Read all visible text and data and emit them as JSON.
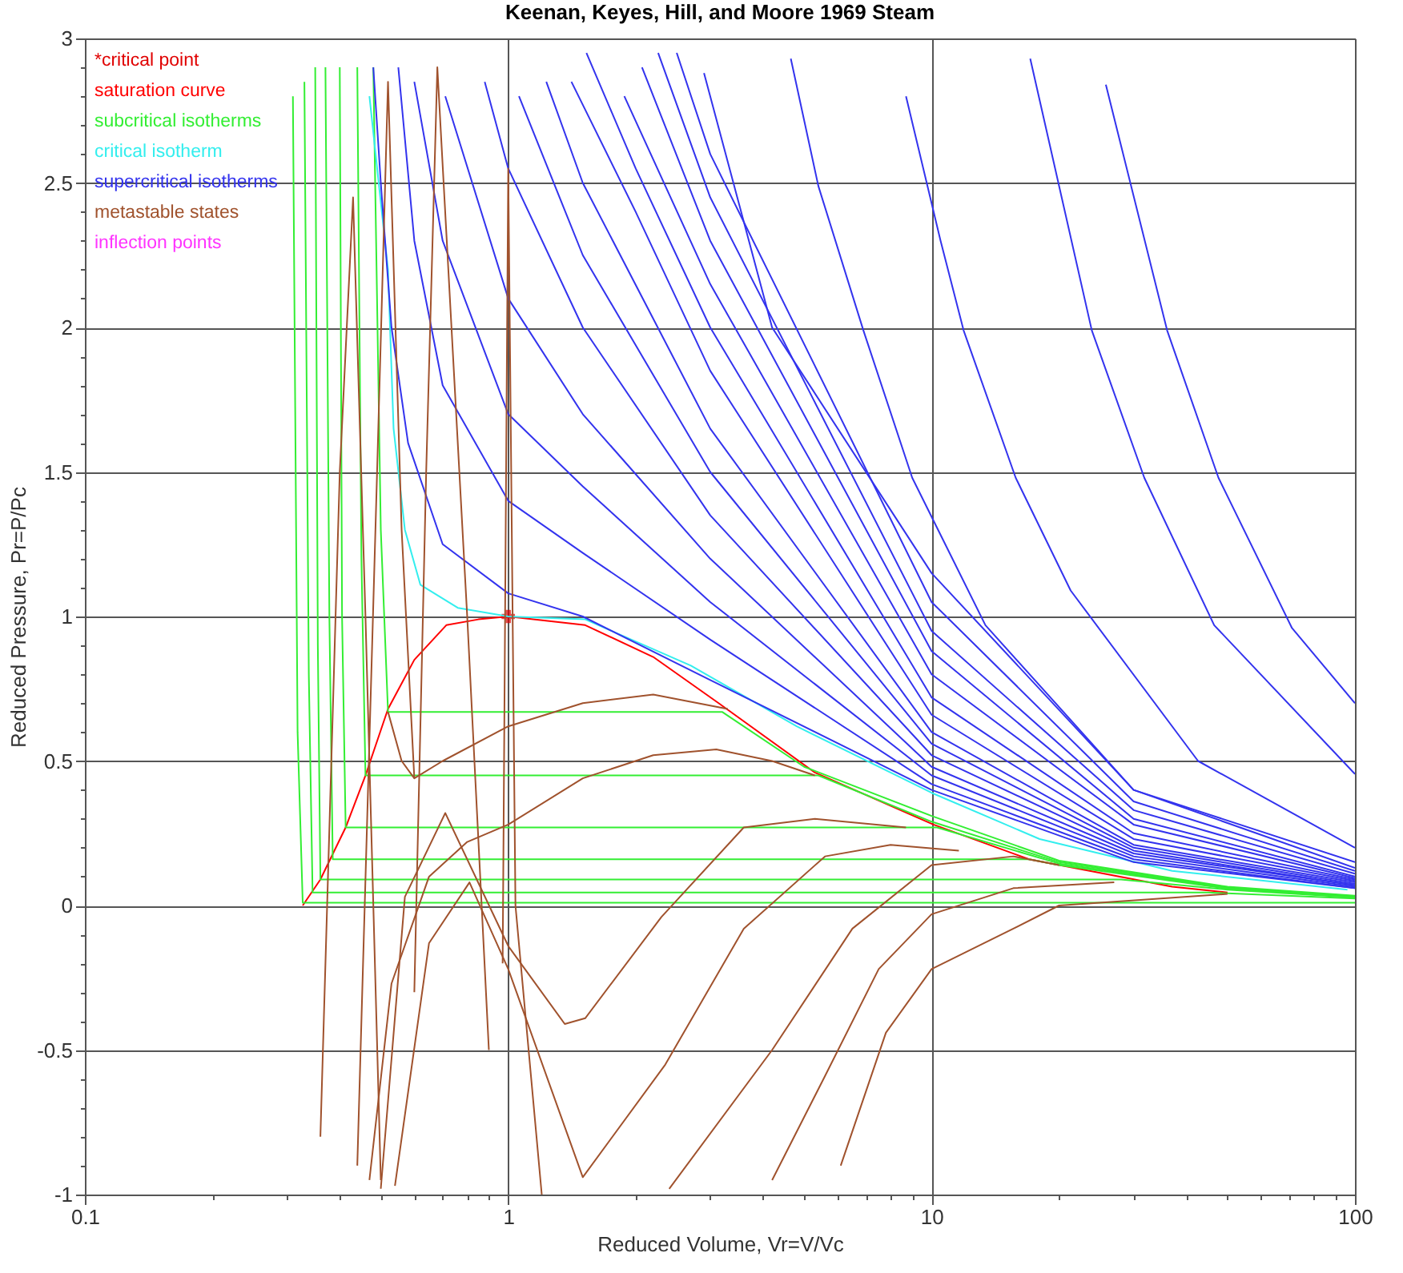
{
  "chart_data": {
    "type": "line",
    "title": "Keenan, Keyes, Hill, and Moore 1969 Steam",
    "xlabel": "Reduced Volume, Vr=V/Vc",
    "ylabel": "Reduced Pressure, Pr=P/Pc",
    "log": "x",
    "grid": true,
    "legend": "top left",
    "xlim": [
      0.1,
      100
    ],
    "ylim": [
      -1,
      3
    ],
    "xticks": [
      0.1,
      {
        "value": 0.2,
        "label": null
      },
      {
        "value": 0.3,
        "label": null
      },
      {
        "value": 0.4,
        "label": null
      },
      {
        "value": 0.5,
        "label": null
      },
      {
        "value": 0.6,
        "label": null
      },
      {
        "value": 0.7,
        "label": null
      },
      {
        "value": 0.8,
        "label": null
      },
      {
        "value": 0.9,
        "label": null
      },
      1,
      {
        "value": 2,
        "label": null
      },
      {
        "value": 3,
        "label": null
      },
      {
        "value": 4,
        "label": null
      },
      {
        "value": 5,
        "label": null
      },
      {
        "value": 6,
        "label": null
      },
      {
        "value": 7,
        "label": null
      },
      {
        "value": 8,
        "label": null
      },
      {
        "value": 9,
        "label": null
      },
      10,
      {
        "value": 20,
        "label": null
      },
      {
        "value": 30,
        "label": null
      },
      {
        "value": 40,
        "label": null
      },
      {
        "value": 50,
        "label": null
      },
      {
        "value": 60,
        "label": null
      },
      {
        "value": 70,
        "label": null
      },
      {
        "value": 80,
        "label": null
      },
      {
        "value": 90,
        "label": null
      },
      100
    ],
    "yticks": [
      -1,
      {
        "value": -0.9,
        "label": null
      },
      {
        "value": -0.8,
        "label": null
      },
      {
        "value": -0.7,
        "label": null
      },
      {
        "value": -0.6,
        "label": null
      },
      -0.5,
      {
        "value": -0.4,
        "label": null
      },
      {
        "value": -0.3,
        "label": null
      },
      {
        "value": -0.2,
        "label": null
      },
      {
        "value": -0.1,
        "label": null
      },
      0,
      {
        "value": 0.1,
        "label": null
      },
      {
        "value": 0.2,
        "label": null
      },
      {
        "value": 0.3,
        "label": null
      },
      {
        "value": 0.4,
        "label": null
      },
      0.5,
      {
        "value": 0.6,
        "label": null
      },
      {
        "value": 0.7,
        "label": null
      },
      {
        "value": 0.8,
        "label": null
      },
      {
        "value": 0.9,
        "label": null
      },
      1,
      {
        "value": 1.1,
        "label": null
      },
      {
        "value": 1.2,
        "label": null
      },
      {
        "value": 1.3,
        "label": null
      },
      {
        "value": 1.4,
        "label": null
      },
      1.5,
      {
        "value": 1.6,
        "label": null
      },
      {
        "value": 1.7,
        "label": null
      },
      {
        "value": 1.8,
        "label": null
      },
      {
        "value": 1.9,
        "label": null
      },
      2,
      {
        "value": 2.1,
        "label": null
      },
      {
        "value": 2.2,
        "label": null
      },
      {
        "value": 2.3,
        "label": null
      },
      {
        "value": 2.4,
        "label": null
      },
      2.5,
      {
        "value": 2.6,
        "label": null
      },
      {
        "value": 2.7,
        "label": null
      },
      {
        "value": 2.8,
        "label": null
      },
      {
        "value": 2.9,
        "label": null
      },
      3
    ],
    "series": [
      {
        "name": "*critical point",
        "type": "scatter",
        "marker": "cross",
        "color": "#e00000",
        "x": [
          1.0
        ],
        "values": [
          1.0
        ]
      },
      {
        "name": "saturation curve",
        "color": "#ff0000",
        "x": [
          0.327,
          0.36,
          0.413,
          0.46,
          0.52,
          0.6,
          0.714,
          0.85,
          1.0,
          1.52,
          2.2,
          3.14,
          5.3,
          10.1,
          17,
          37,
          50
        ],
        "values": [
          0,
          0.09,
          0.27,
          0.45,
          0.68,
          0.85,
          0.97,
          0.99,
          1.0,
          0.97,
          0.86,
          0.7,
          0.46,
          0.28,
          0.16,
          0.065,
          0.045
        ]
      },
      {
        "name": "subcritical isotherms",
        "color": "#33ee33",
        "x": [
          0.48,
          0.5,
          0.52,
          3.2,
          5,
          10,
          20,
          50,
          100
        ],
        "values": [
          2.9,
          1.3,
          0.67,
          0.67,
          0.48,
          0.31,
          0.155,
          0.065,
          0.034
        ]
      },
      {
        "color": "#33ee33",
        "x": [
          0.44,
          0.45,
          0.46,
          5.4,
          10,
          20,
          50,
          100
        ],
        "values": [
          2.9,
          1.2,
          0.45,
          0.45,
          0.29,
          0.15,
          0.062,
          0.032
        ]
      },
      {
        "color": "#33ee33",
        "x": [
          0.4,
          0.405,
          0.413,
          10.3,
          20,
          50,
          100
        ],
        "values": [
          2.9,
          1.0,
          0.27,
          0.27,
          0.145,
          0.06,
          0.03
        ]
      },
      {
        "color": "#33ee33",
        "x": [
          0.37,
          0.378,
          0.385,
          17,
          20,
          50,
          100
        ],
        "values": [
          2.9,
          1.0,
          0.16,
          0.16,
          0.14,
          0.058,
          0.029
        ]
      },
      {
        "color": "#33ee33",
        "x": [
          0.35,
          0.355,
          0.36,
          28,
          50,
          100
        ],
        "values": [
          2.9,
          0.9,
          0.09,
          0.09,
          0.055,
          0.028
        ]
      },
      {
        "color": "#33ee33",
        "x": [
          0.33,
          0.338,
          0.345,
          45,
          50,
          100
        ],
        "values": [
          2.85,
          0.8,
          0.045,
          0.045,
          0.042,
          0.024
        ]
      },
      {
        "color": "#33ee33",
        "x": [
          0.31,
          0.318,
          0.327,
          100
        ],
        "values": [
          2.8,
          0.6,
          0.01,
          0.01
        ]
      },
      {
        "name": "critical isotherm",
        "color": "#33eeee",
        "x": [
          0.47,
          0.52,
          0.536,
          0.57,
          0.62,
          0.76,
          1.0,
          1.52,
          2.7,
          4.8,
          10,
          18,
          37,
          96
        ],
        "values": [
          2.8,
          2.2,
          1.65,
          1.3,
          1.11,
          1.03,
          1.0,
          0.99,
          0.83,
          0.62,
          0.39,
          0.23,
          0.12,
          0.055
        ]
      },
      {
        "name": "supercritical isotherms",
        "color": "#3333ee",
        "x": [
          0.48,
          0.5,
          0.53,
          0.58,
          0.7,
          1.0,
          1.5,
          3,
          10,
          30,
          100
        ],
        "values": [
          2.9,
          2.5,
          2.0,
          1.6,
          1.25,
          1.08,
          1.0,
          0.78,
          0.4,
          0.15,
          0.06
        ]
      },
      {
        "color": "#3333ee",
        "x": [
          0.55,
          0.6,
          0.7,
          1.0,
          1.5,
          3,
          10,
          30,
          100
        ],
        "values": [
          2.9,
          2.3,
          1.8,
          1.4,
          1.22,
          0.92,
          0.42,
          0.16,
          0.06
        ]
      },
      {
        "color": "#3333ee",
        "x": [
          0.6,
          0.7,
          1.0,
          1.5,
          3,
          10,
          30,
          100
        ],
        "values": [
          2.85,
          2.3,
          1.7,
          1.45,
          1.05,
          0.45,
          0.17,
          0.065
        ]
      },
      {
        "color": "#3333ee",
        "x": [
          0.71,
          1.0,
          1.5,
          3,
          10,
          30,
          100
        ],
        "values": [
          2.8,
          2.1,
          1.7,
          1.2,
          0.48,
          0.18,
          0.07
        ]
      },
      {
        "color": "#3333ee",
        "x": [
          0.88,
          1.0,
          1.5,
          3,
          10,
          30,
          100
        ],
        "values": [
          2.85,
          2.55,
          2.0,
          1.35,
          0.52,
          0.19,
          0.07
        ]
      },
      {
        "color": "#3333ee",
        "x": [
          1.06,
          1.5,
          3,
          10,
          30,
          100
        ],
        "values": [
          2.8,
          2.25,
          1.5,
          0.56,
          0.2,
          0.075
        ]
      },
      {
        "color": "#3333ee",
        "x": [
          1.23,
          1.5,
          3,
          10,
          30,
          100
        ],
        "values": [
          2.85,
          2.5,
          1.65,
          0.6,
          0.21,
          0.08
        ]
      },
      {
        "color": "#3333ee",
        "x": [
          1.41,
          2,
          3,
          10,
          30,
          100
        ],
        "values": [
          2.85,
          2.4,
          1.85,
          0.66,
          0.23,
          0.085
        ]
      },
      {
        "color": "#3333ee",
        "x": [
          1.53,
          2,
          3,
          10,
          30,
          100
        ],
        "values": [
          2.95,
          2.55,
          2.0,
          0.72,
          0.25,
          0.09
        ]
      },
      {
        "color": "#3333ee",
        "x": [
          1.88,
          3,
          10,
          30,
          100
        ],
        "values": [
          2.8,
          2.15,
          0.8,
          0.28,
          0.095
        ]
      },
      {
        "color": "#3333ee",
        "x": [
          2.07,
          3,
          10,
          30,
          100
        ],
        "values": [
          2.9,
          2.3,
          0.88,
          0.3,
          0.1
        ]
      },
      {
        "color": "#3333ee",
        "x": [
          2.26,
          3,
          10,
          30,
          100
        ],
        "values": [
          2.95,
          2.45,
          0.95,
          0.33,
          0.11
        ]
      },
      {
        "color": "#3333ee",
        "x": [
          2.5,
          3,
          10,
          30,
          100
        ],
        "values": [
          2.95,
          2.6,
          1.05,
          0.36,
          0.12
        ]
      },
      {
        "color": "#3333ee",
        "x": [
          2.9,
          4.2,
          10,
          30,
          100
        ],
        "values": [
          2.88,
          2.0,
          1.15,
          0.4,
          0.13
        ]
      },
      {
        "color": "#3333ee",
        "x": [
          4.65,
          5.4,
          6.9,
          9.0,
          13.4,
          30,
          100
        ],
        "values": [
          2.93,
          2.49,
          1.99,
          1.48,
          0.97,
          0.4,
          0.15
        ]
      },
      {
        "color": "#3333ee",
        "x": [
          8.7,
          10.5,
          11.9,
          15.8,
          21.3,
          42.6,
          100
        ],
        "values": [
          2.8,
          2.3,
          1.99,
          1.48,
          1.09,
          0.5,
          0.2
        ]
      },
      {
        "color": "#3333ee",
        "x": [
          17.1,
          23.9,
          31.8,
          46.5,
          100
        ],
        "values": [
          2.93,
          1.99,
          1.48,
          0.97,
          0.455
        ]
      },
      {
        "color": "#3333ee",
        "x": [
          25.8,
          36,
          47.6,
          71,
          100
        ],
        "values": [
          2.84,
          1.99,
          1.48,
          0.96,
          0.7
        ]
      },
      {
        "name": "metastable states",
        "color": "#a0522d",
        "x": [
          0.52,
          0.56,
          0.6,
          0.7,
          1.0,
          1.5,
          2.2,
          3.3
        ],
        "values": [
          0.67,
          0.5,
          0.44,
          0.5,
          0.62,
          0.7,
          0.73,
          0.68
        ]
      },
      {
        "color": "#a0522d",
        "x": [
          0.47,
          0.53,
          0.65,
          0.8,
          1.0,
          1.5,
          2.2,
          3.1,
          4.2,
          5.3
        ],
        "values": [
          -0.95,
          -0.27,
          0.1,
          0.22,
          0.28,
          0.44,
          0.52,
          0.54,
          0.5,
          0.45
        ]
      },
      {
        "color": "#a0522d",
        "x": [
          0.5,
          0.57,
          0.71,
          1.0,
          1.36,
          1.52,
          2.3,
          3.6,
          5.3,
          8.7
        ],
        "values": [
          -0.98,
          0.03,
          0.32,
          -0.14,
          -0.41,
          -0.39,
          -0.04,
          0.27,
          0.3,
          0.27
        ]
      },
      {
        "color": "#a0522d",
        "x": [
          0.54,
          0.65,
          0.81,
          1.0,
          1.5,
          2.35,
          3.6,
          5.6,
          8.0,
          11.6
        ],
        "values": [
          -0.97,
          -0.13,
          0.08,
          -0.22,
          -0.94,
          -0.55,
          -0.08,
          0.17,
          0.21,
          0.19
        ]
      },
      {
        "color": "#a0522d",
        "x": [
          2.4,
          4.2,
          6.5,
          10,
          15.6,
          20
        ],
        "values": [
          -0.98,
          -0.5,
          -0.08,
          0.14,
          0.17,
          0.14
        ]
      },
      {
        "color": "#a0522d",
        "x": [
          4.2,
          5.6,
          7.5,
          10,
          15.6,
          27
        ],
        "values": [
          -0.95,
          -0.59,
          -0.22,
          -0.03,
          0.06,
          0.08
        ]
      },
      {
        "color": "#a0522d",
        "x": [
          6.1,
          7.8,
          10,
          15.6,
          20,
          50
        ],
        "values": [
          -0.9,
          -0.44,
          -0.22,
          -0.08,
          0,
          0.04
        ]
      },
      {
        "color": "#a0522d",
        "x": [
          0.36,
          0.4,
          0.43,
          0.46,
          0.5
        ],
        "values": [
          -0.8,
          1.5,
          2.45,
          1.0,
          -0.95
        ]
      },
      {
        "color": "#a0522d",
        "x": [
          0.44,
          0.49,
          0.52,
          0.56,
          0.6
        ],
        "values": [
          -0.9,
          1.5,
          2.85,
          1.3,
          0.44
        ]
      },
      {
        "color": "#a0522d",
        "x": [
          0.6,
          0.64,
          0.68,
          0.8,
          0.9
        ],
        "values": [
          -0.3,
          1.5,
          2.9,
          1.0,
          -0.5
        ]
      },
      {
        "color": "#a0522d",
        "x": [
          0.97,
          1.0,
          1.04,
          1.2
        ],
        "values": [
          -0.2,
          2.55,
          0.0,
          -1.0
        ]
      },
      {
        "name": "inflection points",
        "type": "scatter",
        "marker": "circle",
        "color": "#ff33ff"
      }
    ]
  }
}
